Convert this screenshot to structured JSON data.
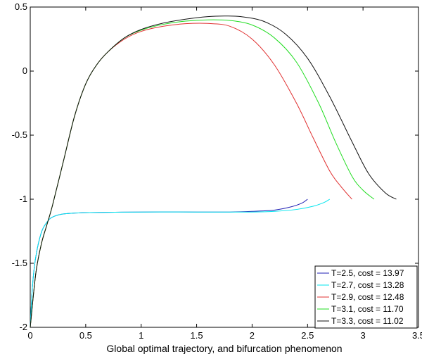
{
  "chart_data": {
    "type": "line",
    "title": "",
    "xlabel": "Global optimal trajectory, and bifurcation phenomenon",
    "ylabel": "",
    "xlim": [
      0,
      3.5
    ],
    "ylim": [
      -2,
      0.5
    ],
    "x_ticks": [
      "0",
      "0.5",
      "1",
      "1.5",
      "2",
      "2.5",
      "3",
      "3.5"
    ],
    "y_ticks": [
      "-2",
      "-1.5",
      "-1",
      "-0.5",
      "0",
      "0.5"
    ],
    "grid": false,
    "legend_position": "bottom-right",
    "series": [
      {
        "name": "T=2.5, cost = 13.97",
        "color": "#1f1fb4",
        "points": [
          [
            0,
            -2
          ],
          [
            0.02,
            -1.68
          ],
          [
            0.05,
            -1.45
          ],
          [
            0.1,
            -1.26
          ],
          [
            0.15,
            -1.18
          ],
          [
            0.2,
            -1.14
          ],
          [
            0.3,
            -1.115
          ],
          [
            0.5,
            -1.105
          ],
          [
            1.0,
            -1.1
          ],
          [
            1.5,
            -1.1
          ],
          [
            1.8,
            -1.1
          ],
          [
            2.0,
            -1.095
          ],
          [
            2.2,
            -1.085
          ],
          [
            2.35,
            -1.06
          ],
          [
            2.45,
            -1.03
          ],
          [
            2.5,
            -1.0
          ]
        ]
      },
      {
        "name": "T=2.7, cost = 13.28",
        "color": "#00e5ee",
        "points": [
          [
            0,
            -2
          ],
          [
            0.02,
            -1.68
          ],
          [
            0.05,
            -1.45
          ],
          [
            0.1,
            -1.26
          ],
          [
            0.15,
            -1.18
          ],
          [
            0.2,
            -1.14
          ],
          [
            0.3,
            -1.115
          ],
          [
            0.5,
            -1.105
          ],
          [
            1.0,
            -1.1
          ],
          [
            1.5,
            -1.1
          ],
          [
            2.0,
            -1.1
          ],
          [
            2.2,
            -1.095
          ],
          [
            2.4,
            -1.08
          ],
          [
            2.55,
            -1.055
          ],
          [
            2.65,
            -1.025
          ],
          [
            2.7,
            -1.0
          ]
        ]
      },
      {
        "name": "T=2.9, cost = 12.48",
        "color": "#e03030",
        "points": [
          [
            0,
            -2
          ],
          [
            0.05,
            -1.58
          ],
          [
            0.1,
            -1.35
          ],
          [
            0.15,
            -1.2
          ],
          [
            0.2,
            -1.05
          ],
          [
            0.3,
            -0.7
          ],
          [
            0.4,
            -0.35
          ],
          [
            0.5,
            -0.1
          ],
          [
            0.6,
            0.05
          ],
          [
            0.7,
            0.15
          ],
          [
            0.85,
            0.25
          ],
          [
            1.0,
            0.31
          ],
          [
            1.2,
            0.35
          ],
          [
            1.4,
            0.37
          ],
          [
            1.6,
            0.372
          ],
          [
            1.8,
            0.35
          ],
          [
            2.0,
            0.25
          ],
          [
            2.2,
            0.05
          ],
          [
            2.4,
            -0.25
          ],
          [
            2.55,
            -0.52
          ],
          [
            2.7,
            -0.78
          ],
          [
            2.8,
            -0.9
          ],
          [
            2.9,
            -1.0
          ]
        ]
      },
      {
        "name": "T=3.1, cost = 11.70",
        "color": "#22dd22",
        "points": [
          [
            0,
            -2
          ],
          [
            0.05,
            -1.58
          ],
          [
            0.1,
            -1.35
          ],
          [
            0.15,
            -1.2
          ],
          [
            0.2,
            -1.05
          ],
          [
            0.3,
            -0.7
          ],
          [
            0.4,
            -0.35
          ],
          [
            0.5,
            -0.1
          ],
          [
            0.6,
            0.05
          ],
          [
            0.7,
            0.15
          ],
          [
            0.85,
            0.26
          ],
          [
            1.0,
            0.32
          ],
          [
            1.2,
            0.365
          ],
          [
            1.4,
            0.39
          ],
          [
            1.6,
            0.4
          ],
          [
            1.8,
            0.395
          ],
          [
            2.0,
            0.36
          ],
          [
            2.2,
            0.26
          ],
          [
            2.4,
            0.07
          ],
          [
            2.6,
            -0.25
          ],
          [
            2.75,
            -0.55
          ],
          [
            2.9,
            -0.82
          ],
          [
            3.0,
            -0.93
          ],
          [
            3.1,
            -1.0
          ]
        ]
      },
      {
        "name": "T=3.3, cost = 11.02",
        "color": "#111111",
        "points": [
          [
            0,
            -2
          ],
          [
            0.05,
            -1.58
          ],
          [
            0.1,
            -1.35
          ],
          [
            0.15,
            -1.2
          ],
          [
            0.2,
            -1.05
          ],
          [
            0.3,
            -0.7
          ],
          [
            0.4,
            -0.35
          ],
          [
            0.5,
            -0.1
          ],
          [
            0.6,
            0.05
          ],
          [
            0.7,
            0.15
          ],
          [
            0.85,
            0.26
          ],
          [
            1.0,
            0.325
          ],
          [
            1.2,
            0.375
          ],
          [
            1.4,
            0.405
          ],
          [
            1.6,
            0.425
          ],
          [
            1.75,
            0.43
          ],
          [
            1.9,
            0.425
          ],
          [
            2.1,
            0.39
          ],
          [
            2.3,
            0.29
          ],
          [
            2.5,
            0.1
          ],
          [
            2.7,
            -0.2
          ],
          [
            2.9,
            -0.55
          ],
          [
            3.05,
            -0.8
          ],
          [
            3.2,
            -0.95
          ],
          [
            3.3,
            -1.0
          ]
        ]
      }
    ]
  }
}
